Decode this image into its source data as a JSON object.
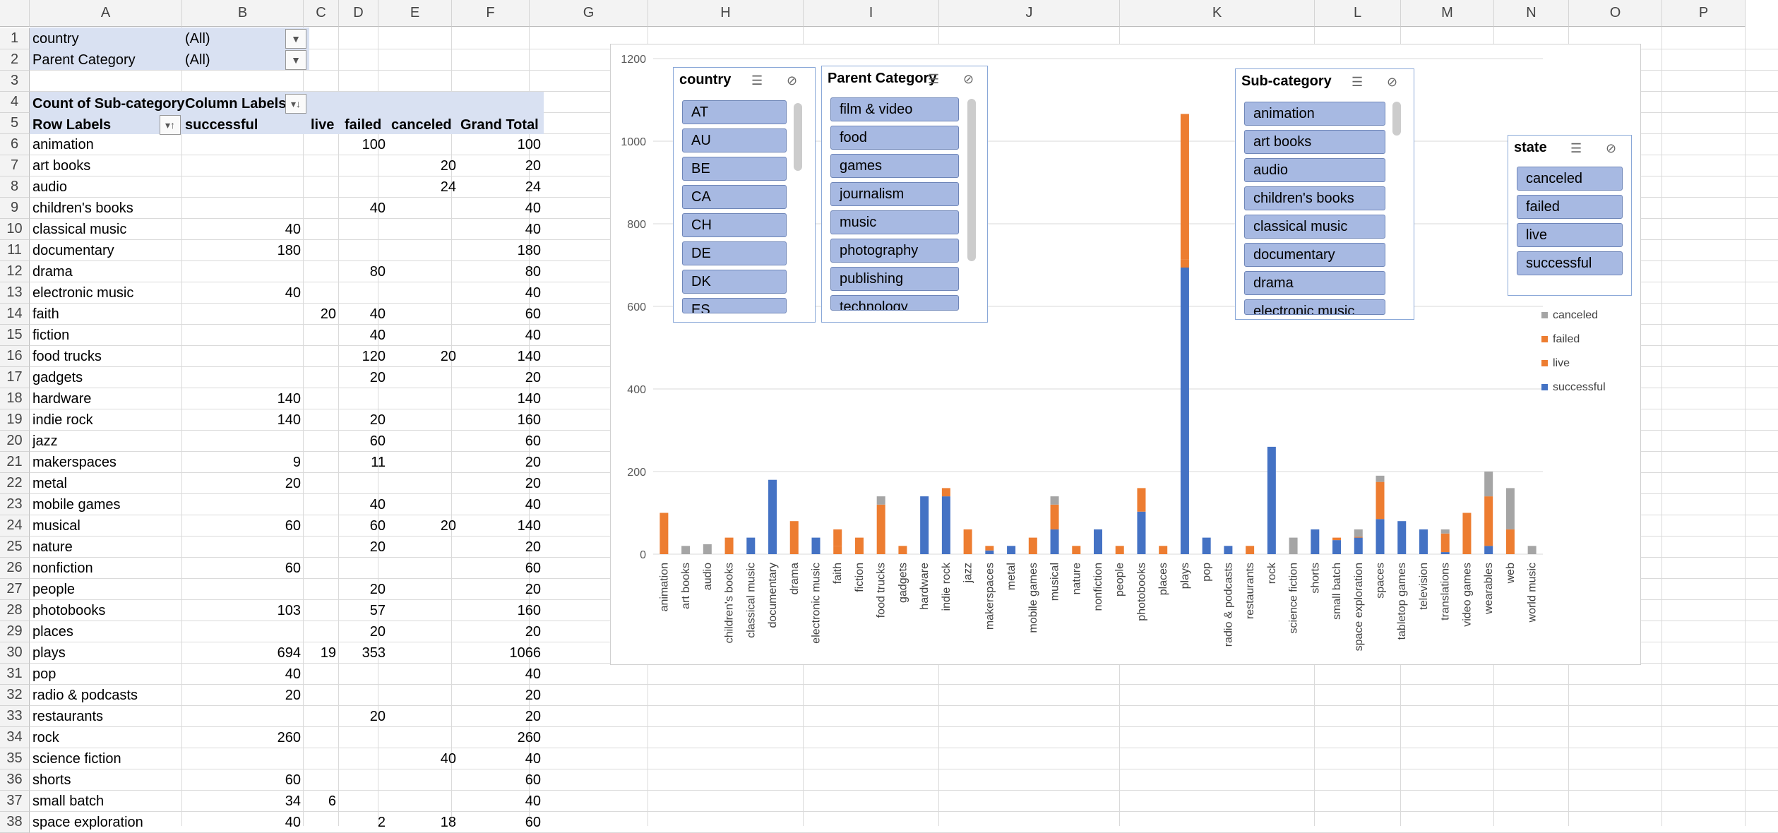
{
  "columns": [
    "A",
    "B",
    "C",
    "D",
    "E",
    "F",
    "G",
    "H",
    "I",
    "J",
    "K",
    "L",
    "M",
    "N",
    "O",
    "P"
  ],
  "filters": [
    {
      "label": "country",
      "value": "(All)"
    },
    {
      "label": "Parent Category",
      "value": "(All)"
    }
  ],
  "pivot": {
    "value_title": "Count of Sub-category",
    "column_labels": "Column Labels",
    "row_labels": "Row Labels",
    "headers": [
      "successful",
      "live",
      "failed",
      "canceled",
      "Grand Total"
    ],
    "rows": [
      {
        "label": "animation",
        "successful": "",
        "live": "",
        "failed": "100",
        "canceled": "",
        "total": "100"
      },
      {
        "label": "art books",
        "successful": "",
        "live": "",
        "failed": "",
        "canceled": "20",
        "total": "20"
      },
      {
        "label": "audio",
        "successful": "",
        "live": "",
        "failed": "",
        "canceled": "24",
        "total": "24"
      },
      {
        "label": "children's books",
        "successful": "",
        "live": "",
        "failed": "40",
        "canceled": "",
        "total": "40"
      },
      {
        "label": "classical music",
        "successful": "40",
        "live": "",
        "failed": "",
        "canceled": "",
        "total": "40"
      },
      {
        "label": "documentary",
        "successful": "180",
        "live": "",
        "failed": "",
        "canceled": "",
        "total": "180"
      },
      {
        "label": "drama",
        "successful": "",
        "live": "",
        "failed": "80",
        "canceled": "",
        "total": "80"
      },
      {
        "label": "electronic music",
        "successful": "40",
        "live": "",
        "failed": "",
        "canceled": "",
        "total": "40"
      },
      {
        "label": "faith",
        "successful": "",
        "live": "20",
        "failed": "40",
        "canceled": "",
        "total": "60"
      },
      {
        "label": "fiction",
        "successful": "",
        "live": "",
        "failed": "40",
        "canceled": "",
        "total": "40"
      },
      {
        "label": "food trucks",
        "successful": "",
        "live": "",
        "failed": "120",
        "canceled": "20",
        "total": "140"
      },
      {
        "label": "gadgets",
        "successful": "",
        "live": "",
        "failed": "20",
        "canceled": "",
        "total": "20"
      },
      {
        "label": "hardware",
        "successful": "140",
        "live": "",
        "failed": "",
        "canceled": "",
        "total": "140"
      },
      {
        "label": "indie rock",
        "successful": "140",
        "live": "",
        "failed": "20",
        "canceled": "",
        "total": "160"
      },
      {
        "label": "jazz",
        "successful": "",
        "live": "",
        "failed": "60",
        "canceled": "",
        "total": "60"
      },
      {
        "label": "makerspaces",
        "successful": "9",
        "live": "",
        "failed": "11",
        "canceled": "",
        "total": "20"
      },
      {
        "label": "metal",
        "successful": "20",
        "live": "",
        "failed": "",
        "canceled": "",
        "total": "20"
      },
      {
        "label": "mobile games",
        "successful": "",
        "live": "",
        "failed": "40",
        "canceled": "",
        "total": "40"
      },
      {
        "label": "musical",
        "successful": "60",
        "live": "",
        "failed": "60",
        "canceled": "20",
        "total": "140"
      },
      {
        "label": "nature",
        "successful": "",
        "live": "",
        "failed": "20",
        "canceled": "",
        "total": "20"
      },
      {
        "label": "nonfiction",
        "successful": "60",
        "live": "",
        "failed": "",
        "canceled": "",
        "total": "60"
      },
      {
        "label": "people",
        "successful": "",
        "live": "",
        "failed": "20",
        "canceled": "",
        "total": "20"
      },
      {
        "label": "photobooks",
        "successful": "103",
        "live": "",
        "failed": "57",
        "canceled": "",
        "total": "160"
      },
      {
        "label": "places",
        "successful": "",
        "live": "",
        "failed": "20",
        "canceled": "",
        "total": "20"
      },
      {
        "label": "plays",
        "successful": "694",
        "live": "19",
        "failed": "353",
        "canceled": "",
        "total": "1066"
      },
      {
        "label": "pop",
        "successful": "40",
        "live": "",
        "failed": "",
        "canceled": "",
        "total": "40"
      },
      {
        "label": "radio & podcasts",
        "successful": "20",
        "live": "",
        "failed": "",
        "canceled": "",
        "total": "20"
      },
      {
        "label": "restaurants",
        "successful": "",
        "live": "",
        "failed": "20",
        "canceled": "",
        "total": "20"
      },
      {
        "label": "rock",
        "successful": "260",
        "live": "",
        "failed": "",
        "canceled": "",
        "total": "260"
      },
      {
        "label": "science fiction",
        "successful": "",
        "live": "",
        "failed": "",
        "canceled": "40",
        "total": "40"
      },
      {
        "label": "shorts",
        "successful": "60",
        "live": "",
        "failed": "",
        "canceled": "",
        "total": "60"
      },
      {
        "label": "small batch",
        "successful": "34",
        "live": "6",
        "failed": "",
        "canceled": "",
        "total": "40"
      },
      {
        "label": "space exploration",
        "successful": "40",
        "live": "",
        "failed": "2",
        "canceled": "18",
        "total": "60"
      }
    ]
  },
  "slicers": {
    "country": {
      "title": "country",
      "items": [
        "AT",
        "AU",
        "BE",
        "CA",
        "CH",
        "DE",
        "DK",
        "ES"
      ]
    },
    "parent_category": {
      "title": "Parent Category",
      "items": [
        "film & video",
        "food",
        "games",
        "journalism",
        "music",
        "photography",
        "publishing",
        "technology"
      ]
    },
    "sub_category": {
      "title": "Sub-category",
      "items": [
        "animation",
        "art books",
        "audio",
        "children's books",
        "classical music",
        "documentary",
        "drama",
        "electronic music"
      ]
    },
    "state": {
      "title": "state",
      "items": [
        "canceled",
        "failed",
        "live",
        "successful"
      ]
    }
  },
  "colors": {
    "successful": "#4472c4",
    "live": "#ed7d31",
    "failed": "#ed7d31",
    "canceled": "#a5a5a5",
    "slicer_item": "#a7b9e2",
    "header_band": "#d9e1f2"
  },
  "chart_data": {
    "type": "bar",
    "stacked": true,
    "ylim": [
      0,
      1200
    ],
    "yticks": [
      0,
      200,
      400,
      600,
      800,
      1000,
      1200
    ],
    "grid": true,
    "legend_position": "right",
    "categories": [
      "animation",
      "art books",
      "audio",
      "children's books",
      "classical music",
      "documentary",
      "drama",
      "electronic music",
      "faith",
      "fiction",
      "food trucks",
      "gadgets",
      "hardware",
      "indie rock",
      "jazz",
      "makerspaces",
      "metal",
      "mobile games",
      "musical",
      "nature",
      "nonfiction",
      "people",
      "photobooks",
      "places",
      "plays",
      "pop",
      "radio & podcasts",
      "restaurants",
      "rock",
      "science fiction",
      "shorts",
      "small batch",
      "space exploration",
      "spaces",
      "tabletop games",
      "television",
      "translations",
      "video games",
      "wearables",
      "web",
      "world music"
    ],
    "series": [
      {
        "name": "successful",
        "values": [
          0,
          0,
          0,
          0,
          40,
          180,
          0,
          40,
          0,
          0,
          0,
          0,
          140,
          140,
          0,
          9,
          20,
          0,
          60,
          0,
          60,
          0,
          103,
          0,
          694,
          40,
          20,
          0,
          260,
          0,
          60,
          34,
          40,
          85,
          80,
          60,
          5,
          0,
          20,
          0,
          0
        ]
      },
      {
        "name": "live",
        "values": [
          0,
          0,
          0,
          0,
          0,
          0,
          0,
          0,
          20,
          0,
          0,
          0,
          0,
          0,
          0,
          0,
          0,
          0,
          0,
          0,
          0,
          0,
          0,
          0,
          19,
          0,
          0,
          0,
          0,
          0,
          0,
          6,
          0,
          0,
          0,
          0,
          0,
          0,
          0,
          0,
          0
        ]
      },
      {
        "name": "failed",
        "values": [
          100,
          0,
          0,
          40,
          0,
          0,
          80,
          0,
          40,
          40,
          120,
          20,
          0,
          20,
          60,
          11,
          0,
          40,
          60,
          20,
          0,
          20,
          57,
          20,
          353,
          0,
          0,
          20,
          0,
          0,
          0,
          0,
          2,
          90,
          0,
          0,
          45,
          100,
          120,
          60,
          0
        ]
      },
      {
        "name": "canceled",
        "values": [
          0,
          20,
          24,
          0,
          0,
          0,
          0,
          0,
          0,
          0,
          20,
          0,
          0,
          0,
          0,
          0,
          0,
          0,
          20,
          0,
          0,
          0,
          0,
          0,
          0,
          0,
          0,
          0,
          0,
          40,
          0,
          0,
          18,
          15,
          0,
          0,
          10,
          0,
          60,
          100,
          20
        ]
      }
    ],
    "legend": [
      "canceled",
      "failed",
      "live",
      "successful"
    ]
  }
}
